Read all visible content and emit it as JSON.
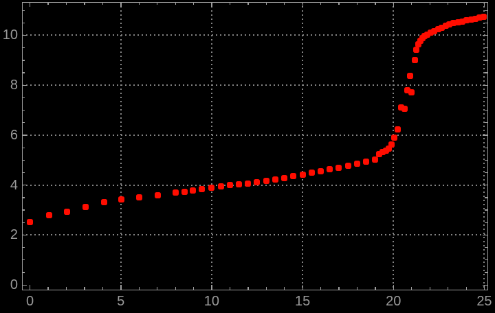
{
  "chart_data": {
    "type": "scatter",
    "title": "",
    "xlabel": "",
    "ylabel": "",
    "legend": "none",
    "background_color": "#000000",
    "frame_color": "#9e9e9e",
    "grid_color": "#858585",
    "grid_style": "dotted",
    "label_color": "#9a9a9a",
    "marker": "rounded-square",
    "marker_color": "#ff0d00",
    "marker_size_px": 9,
    "xlim": [
      -0.455,
      25.21
    ],
    "ylim": [
      -0.22,
      11.33
    ],
    "x_ticks": [
      0,
      5,
      10,
      15,
      20,
      25
    ],
    "y_ticks": [
      0,
      2,
      4,
      6,
      8,
      10
    ],
    "x_tick_labels": [
      "0",
      "5",
      "10",
      "15",
      "20",
      "25"
    ],
    "y_tick_labels": [
      "0",
      "2",
      "4",
      "6",
      "8",
      "10"
    ],
    "x_minor_step": 1,
    "y_minor_step": 0.5,
    "x_gridlines": [
      5,
      10,
      15,
      20,
      25
    ],
    "y_gridlines": [
      2,
      4,
      6,
      8,
      10
    ],
    "points": [
      [
        0.0,
        2.51
      ],
      [
        1.05,
        2.8
      ],
      [
        2.05,
        2.94
      ],
      [
        3.05,
        3.13
      ],
      [
        4.1,
        3.32
      ],
      [
        5.03,
        3.42
      ],
      [
        6.0,
        3.5
      ],
      [
        7.03,
        3.6
      ],
      [
        8.02,
        3.7
      ],
      [
        8.5,
        3.74
      ],
      [
        8.97,
        3.79
      ],
      [
        9.46,
        3.84
      ],
      [
        10.0,
        3.9
      ],
      [
        10.5,
        3.94
      ],
      [
        11.0,
        3.99
      ],
      [
        11.5,
        4.03
      ],
      [
        12.0,
        4.07
      ],
      [
        12.5,
        4.12
      ],
      [
        13.0,
        4.17
      ],
      [
        13.5,
        4.23
      ],
      [
        14.0,
        4.29
      ],
      [
        14.5,
        4.35
      ],
      [
        15.0,
        4.41
      ],
      [
        15.5,
        4.49
      ],
      [
        16.0,
        4.56
      ],
      [
        16.5,
        4.63
      ],
      [
        17.0,
        4.7
      ],
      [
        17.5,
        4.77
      ],
      [
        18.0,
        4.85
      ],
      [
        18.5,
        4.93
      ],
      [
        18.97,
        5.03
      ],
      [
        19.22,
        5.24
      ],
      [
        19.42,
        5.32
      ],
      [
        19.6,
        5.39
      ],
      [
        19.75,
        5.46
      ],
      [
        19.9,
        5.63
      ],
      [
        20.06,
        5.9
      ],
      [
        20.25,
        6.24
      ],
      [
        20.44,
        7.12
      ],
      [
        20.63,
        7.06
      ],
      [
        20.76,
        7.79
      ],
      [
        20.93,
        8.37
      ],
      [
        20.98,
        7.71
      ],
      [
        21.18,
        9.02
      ],
      [
        21.27,
        9.43
      ],
      [
        21.38,
        9.64
      ],
      [
        21.5,
        9.79
      ],
      [
        21.61,
        9.9
      ],
      [
        21.72,
        9.96
      ],
      [
        21.87,
        10.03
      ],
      [
        22.05,
        10.1
      ],
      [
        22.25,
        10.17
      ],
      [
        22.45,
        10.24
      ],
      [
        22.65,
        10.31
      ],
      [
        22.87,
        10.37
      ],
      [
        23.09,
        10.43
      ],
      [
        23.31,
        10.48
      ],
      [
        23.55,
        10.52
      ],
      [
        23.8,
        10.56
      ],
      [
        24.03,
        10.6
      ],
      [
        24.27,
        10.64
      ],
      [
        24.5,
        10.67
      ],
      [
        24.74,
        10.7
      ],
      [
        24.98,
        10.73
      ]
    ]
  }
}
